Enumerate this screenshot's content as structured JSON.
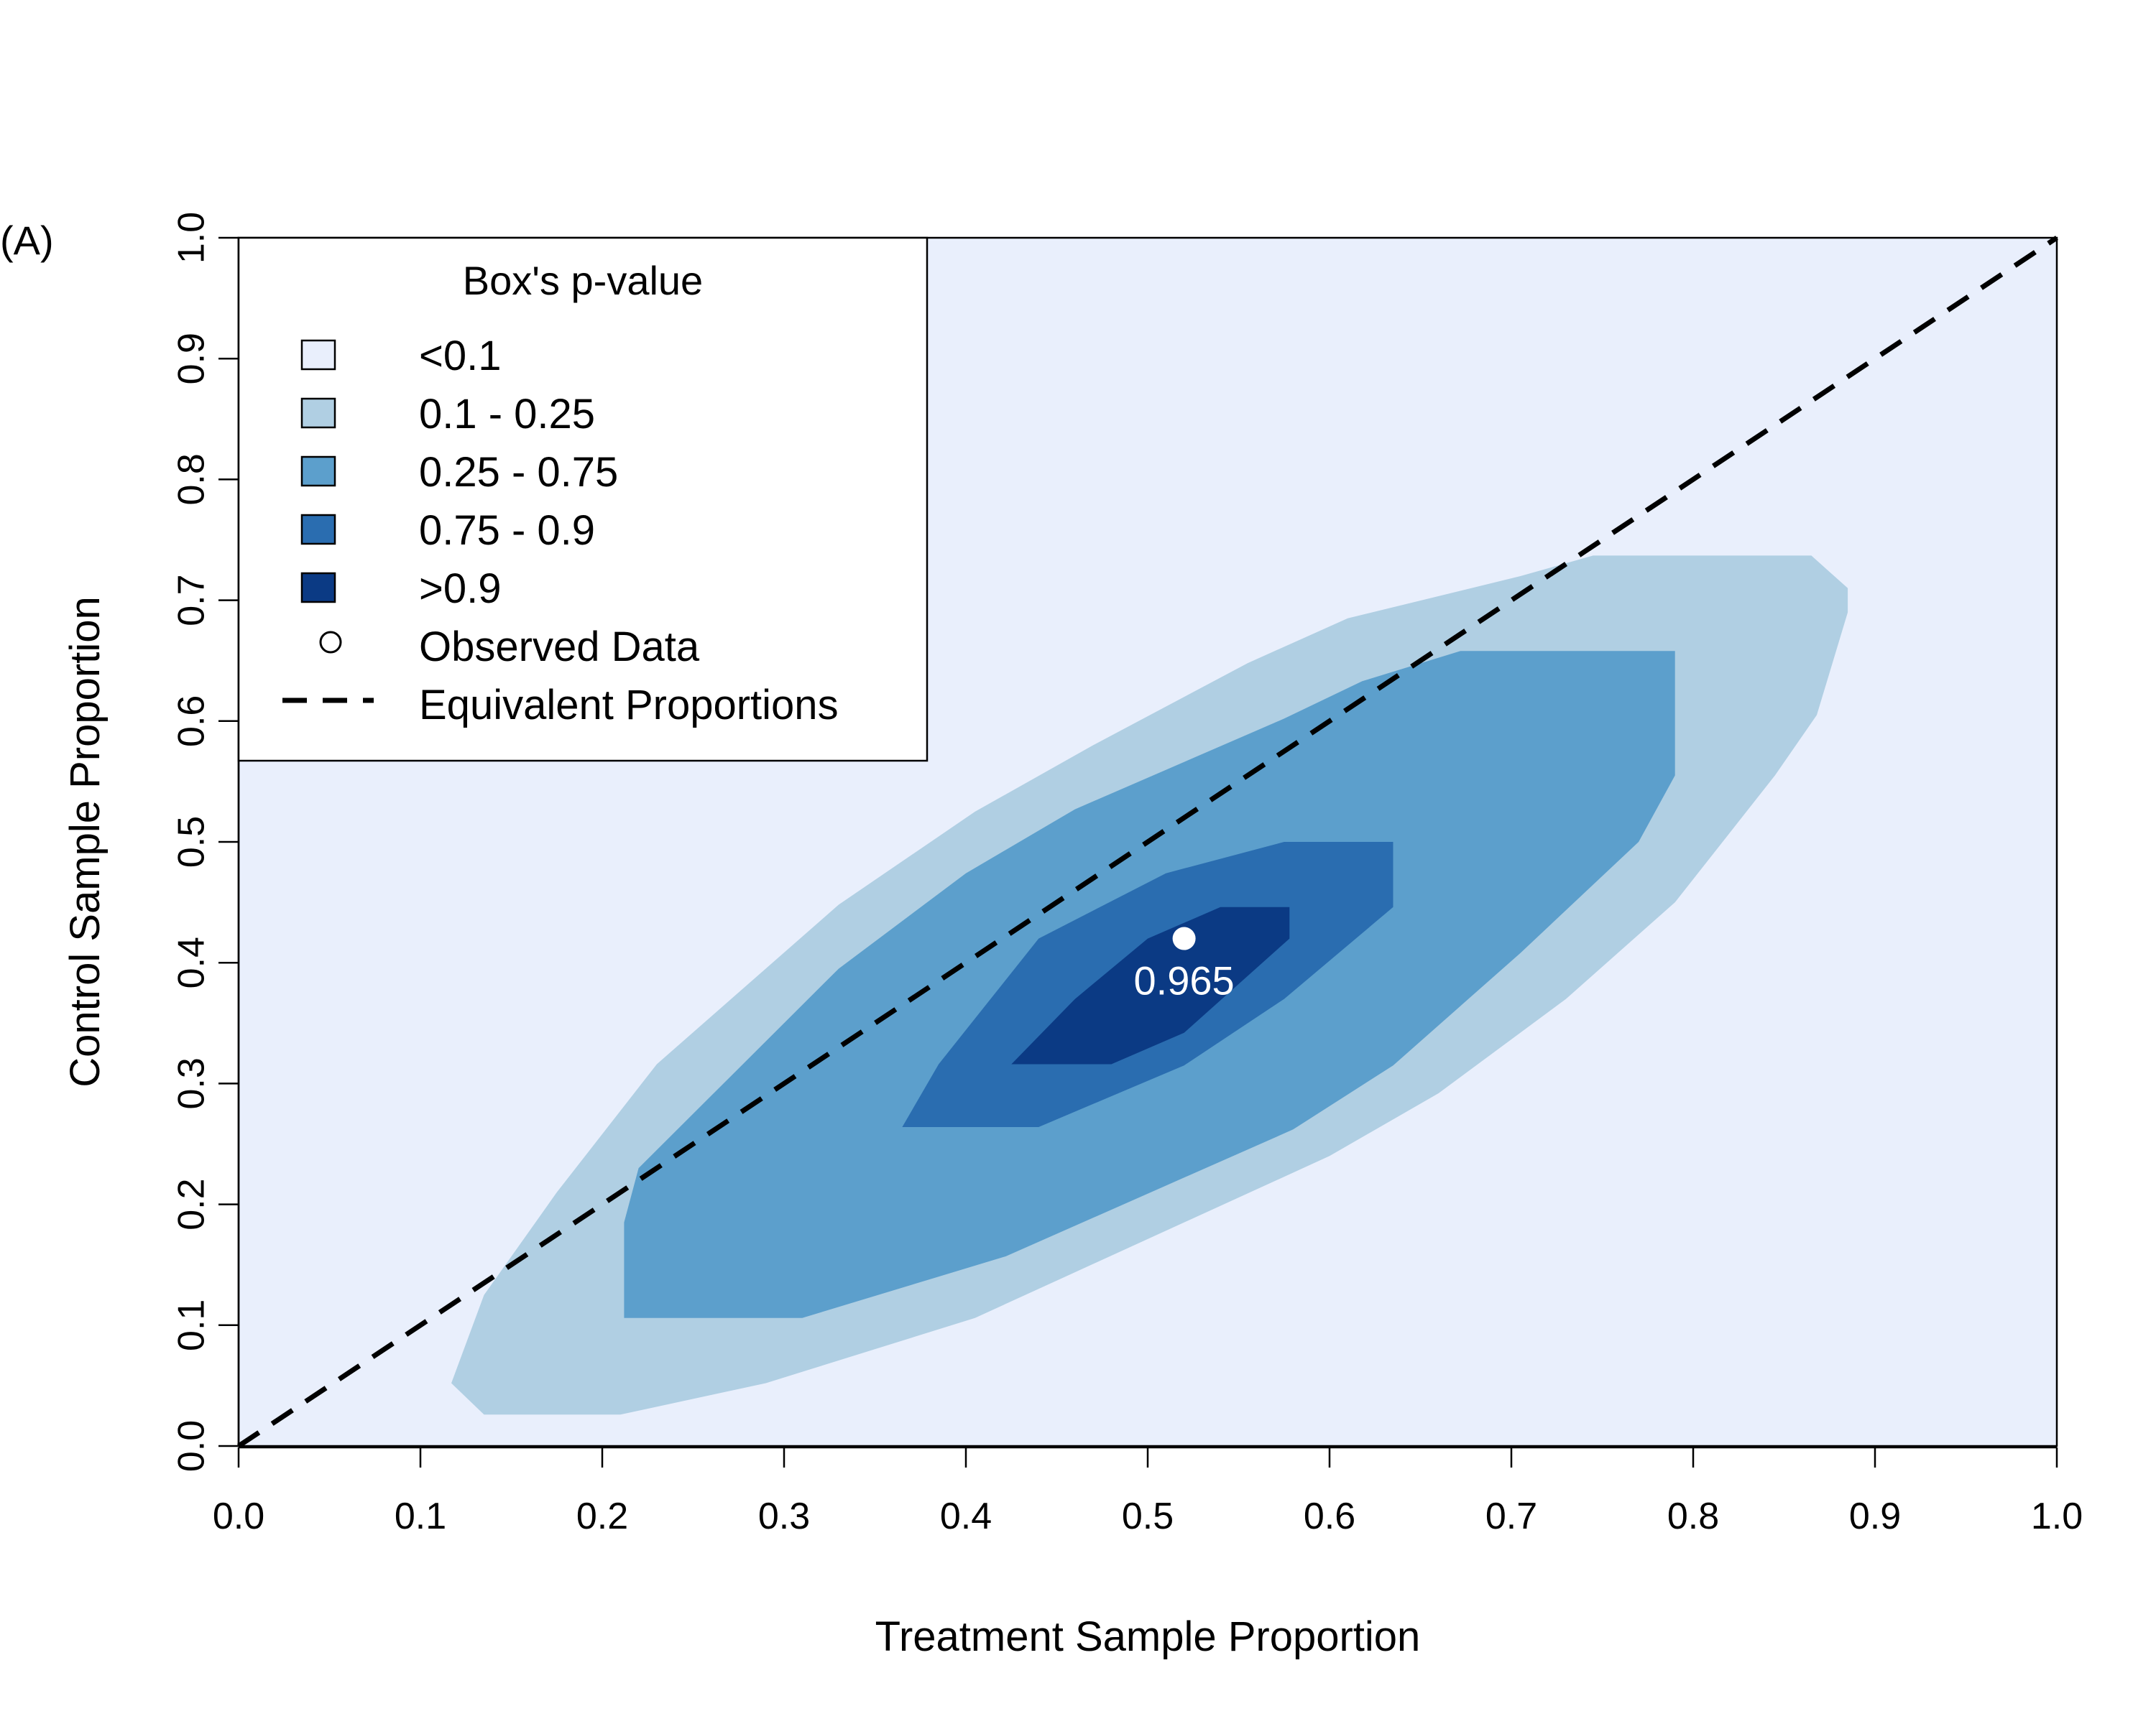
{
  "chart_data": {
    "type": "contour",
    "panel_label": "(A)",
    "xlabel": "Treatment Sample Proportion",
    "ylabel": "Control Sample Proportion",
    "xlim": [
      0,
      1
    ],
    "ylim": [
      0,
      1
    ],
    "x_ticks": [
      "0.0",
      "0.1",
      "0.2",
      "0.3",
      "0.4",
      "0.5",
      "0.6",
      "0.7",
      "0.8",
      "0.9",
      "1.0"
    ],
    "y_ticks": [
      "0.0",
      "0.1",
      "0.2",
      "0.3",
      "0.4",
      "0.5",
      "0.6",
      "0.7",
      "0.8",
      "0.9",
      "1.0"
    ],
    "grid": false,
    "legend": {
      "title": "Box's p-value",
      "position": "top-left",
      "entries": [
        {
          "label": "<0.1",
          "color": "#e9effc",
          "kind": "fill"
        },
        {
          "label": "0.1 - 0.25",
          "color": "#b0cfe3",
          "kind": "fill"
        },
        {
          "label": "0.25 - 0.75",
          "color": "#5c9fcc",
          "kind": "fill"
        },
        {
          "label": "0.75 - 0.9",
          "color": "#2a6db0",
          "kind": "fill"
        },
        {
          "label": ">0.9",
          "color": "#0b3a84",
          "kind": "fill"
        },
        {
          "label": "Observed Data",
          "kind": "point"
        },
        {
          "label": "Equivalent Proportions",
          "kind": "dashed-line"
        }
      ]
    },
    "levels": [
      {
        "range": "0.1 - 0.25",
        "color": "#b0cfe3",
        "polygon": [
          [
            0.117,
            0.052
          ],
          [
            0.135,
            0.026
          ],
          [
            0.21,
            0.026
          ],
          [
            0.29,
            0.052
          ],
          [
            0.405,
            0.106
          ],
          [
            0.52,
            0.185
          ],
          [
            0.6,
            0.24
          ],
          [
            0.66,
            0.292
          ],
          [
            0.73,
            0.37
          ],
          [
            0.79,
            0.45
          ],
          [
            0.845,
            0.555
          ],
          [
            0.868,
            0.605
          ],
          [
            0.885,
            0.69
          ],
          [
            0.885,
            0.71
          ],
          [
            0.865,
            0.737
          ],
          [
            0.745,
            0.737
          ],
          [
            0.705,
            0.72
          ],
          [
            0.61,
            0.685
          ],
          [
            0.555,
            0.648
          ],
          [
            0.47,
            0.58
          ],
          [
            0.405,
            0.525
          ],
          [
            0.33,
            0.448
          ],
          [
            0.23,
            0.316
          ],
          [
            0.175,
            0.21
          ],
          [
            0.135,
            0.125
          ]
        ]
      },
      {
        "range": "0.25 - 0.75",
        "color": "#5c9fcc",
        "polygon": [
          [
            0.212,
            0.106
          ],
          [
            0.31,
            0.106
          ],
          [
            0.422,
            0.157
          ],
          [
            0.58,
            0.262
          ],
          [
            0.635,
            0.315
          ],
          [
            0.705,
            0.408
          ],
          [
            0.77,
            0.5
          ],
          [
            0.79,
            0.555
          ],
          [
            0.79,
            0.658
          ],
          [
            0.672,
            0.658
          ],
          [
            0.618,
            0.633
          ],
          [
            0.575,
            0.602
          ],
          [
            0.46,
            0.527
          ],
          [
            0.4,
            0.474
          ],
          [
            0.33,
            0.395
          ],
          [
            0.22,
            0.23
          ],
          [
            0.212,
            0.185
          ]
        ]
      },
      {
        "range": "0.75 - 0.9",
        "color": "#2a6db0",
        "polygon": [
          [
            0.365,
            0.264
          ],
          [
            0.44,
            0.264
          ],
          [
            0.52,
            0.315
          ],
          [
            0.575,
            0.37
          ],
          [
            0.635,
            0.446
          ],
          [
            0.635,
            0.5
          ],
          [
            0.575,
            0.5
          ],
          [
            0.51,
            0.474
          ],
          [
            0.44,
            0.42
          ],
          [
            0.385,
            0.316
          ]
        ]
      },
      {
        "range": ">0.9",
        "color": "#0b3a84",
        "polygon": [
          [
            0.425,
            0.316
          ],
          [
            0.48,
            0.316
          ],
          [
            0.52,
            0.342
          ],
          [
            0.578,
            0.42
          ],
          [
            0.578,
            0.446
          ],
          [
            0.54,
            0.446
          ],
          [
            0.5,
            0.42
          ],
          [
            0.46,
            0.37
          ]
        ]
      }
    ],
    "observed_point": {
      "x": 0.52,
      "y": 0.42,
      "label": "0.965"
    },
    "reference_line": {
      "from": [
        0,
        0
      ],
      "to": [
        1,
        1
      ]
    },
    "background_color": "#e9effc"
  }
}
